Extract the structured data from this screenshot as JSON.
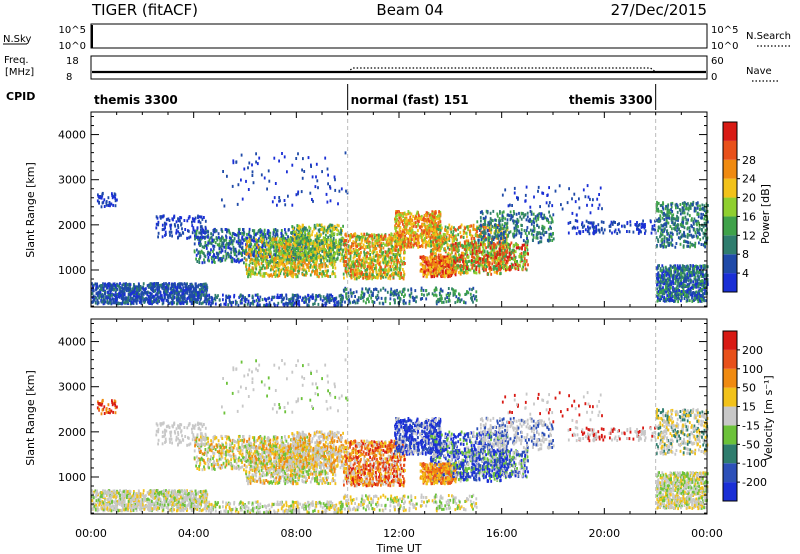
{
  "header": {
    "radar": "TIGER (fitACF)",
    "beam": "Beam 04",
    "date": "27/Dec/2015"
  },
  "nsky_panel": {
    "left_label": "N.Sky",
    "right_label": "N.Search",
    "ticks": [
      "10^5",
      "10^0"
    ]
  },
  "freq_panel": {
    "left_label_1": "Freq.",
    "left_label_2": "[MHz]",
    "right_label": "Nave",
    "left_ticks": [
      18,
      8
    ],
    "right_ticks": [
      60,
      0
    ]
  },
  "cpid": {
    "label": "CPID",
    "segments": [
      {
        "text": "themis 3300",
        "start_hour": 0,
        "end_hour": 10
      },
      {
        "text": "normal (fast) 151",
        "start_hour": 10,
        "end_hour": 22
      },
      {
        "text": "themis 3300",
        "start_hour": 22,
        "end_hour": 24
      }
    ]
  },
  "chart_data": [
    {
      "type": "heatmap",
      "quantity": "Power",
      "ylabel": "Slant Range [km]",
      "ylim": [
        180,
        4500
      ],
      "yticks": [
        1000,
        2000,
        3000,
        4000
      ],
      "xlim_hours": [
        0,
        24
      ],
      "colorbar": {
        "label": "Power [dB]",
        "ticks": [
          4,
          8,
          12,
          16,
          20,
          24,
          28
        ],
        "colors": [
          "#1a2fd6",
          "#1f4aa8",
          "#2f7d6e",
          "#3fa24a",
          "#8fcf2f",
          "#f2c21a",
          "#f08a10",
          "#e8501a",
          "#d81a14"
        ]
      }
    },
    {
      "type": "heatmap",
      "quantity": "Velocity",
      "ylabel": "Slant Range [km]",
      "ylim": [
        180,
        4500
      ],
      "yticks": [
        1000,
        2000,
        3000,
        4000
      ],
      "xlim_hours": [
        0,
        24
      ],
      "xlabel": "Time UT",
      "xticks": [
        "00:00",
        "04:00",
        "08:00",
        "12:00",
        "16:00",
        "20:00",
        "00:00"
      ],
      "colorbar": {
        "label": "Velocity [m s⁻¹]",
        "ticks": [
          200,
          100,
          50,
          15,
          -15,
          -50,
          -100,
          -200
        ],
        "colors": [
          "#1a2fd6",
          "#2d50b8",
          "#2f7d6e",
          "#6cc23a",
          "#c8c8c8",
          "#f2c21a",
          "#f08a10",
          "#e8501a",
          "#d81a14"
        ]
      }
    }
  ]
}
